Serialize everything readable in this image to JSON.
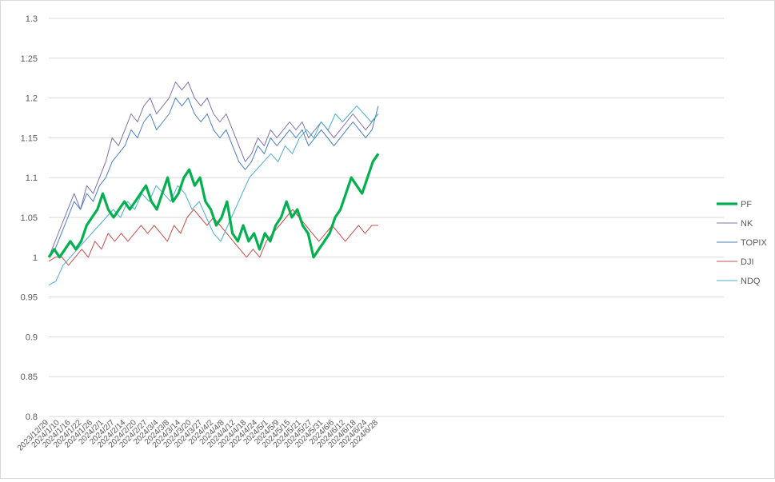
{
  "chart_data": {
    "type": "line",
    "title": "",
    "xlabel": "",
    "ylabel": "",
    "ylim": [
      0.8,
      1.3
    ],
    "yticks": [
      "1.3",
      "1.25",
      "1.2",
      "1.15",
      "1.1",
      "1.05",
      "1",
      "0.95",
      "0.9",
      "0.85",
      "0.8"
    ],
    "grid": true,
    "legend_position": "right",
    "x_tick_labels": [
      "2023/12/29",
      "2024/1/10",
      "2024/1/16",
      "2024/1/22",
      "2024/1/26",
      "2024/2/1",
      "2024/2/7",
      "2024/2/14",
      "2024/2/20",
      "2024/2/27",
      "2024/3/4",
      "2024/3/8",
      "2024/3/14",
      "2024/3/20",
      "2024/3/27",
      "2024/4/2",
      "2024/4/8",
      "2024/4/12",
      "2024/4/18",
      "2024/4/24",
      "2024/5/1",
      "2024/5/9",
      "2024/5/15",
      "2024/5/21",
      "2024/5/27",
      "2024/5/31",
      "2024/6/6",
      "2024/6/12",
      "2024/6/18",
      "2024/6/24",
      "2024/6/28"
    ],
    "series": [
      {
        "name": "PF",
        "color": "#00b050",
        "width": 3.2,
        "values": [
          1.0,
          1.01,
          1.0,
          1.01,
          1.02,
          1.01,
          1.02,
          1.04,
          1.05,
          1.06,
          1.08,
          1.06,
          1.05,
          1.06,
          1.07,
          1.06,
          1.07,
          1.08,
          1.09,
          1.07,
          1.06,
          1.08,
          1.1,
          1.07,
          1.08,
          1.1,
          1.11,
          1.09,
          1.1,
          1.07,
          1.06,
          1.04,
          1.05,
          1.07,
          1.03,
          1.02,
          1.04,
          1.02,
          1.03,
          1.01,
          1.03,
          1.02,
          1.04,
          1.05,
          1.07,
          1.05,
          1.06,
          1.04,
          1.03,
          1.0,
          1.01,
          1.02,
          1.03,
          1.05,
          1.06,
          1.08,
          1.1,
          1.09,
          1.08,
          1.1,
          1.12,
          1.13
        ]
      },
      {
        "name": "NK",
        "color": "#7f6fa8",
        "width": 1,
        "values": [
          1.0,
          1.02,
          1.04,
          1.06,
          1.08,
          1.06,
          1.09,
          1.08,
          1.1,
          1.12,
          1.15,
          1.14,
          1.16,
          1.18,
          1.17,
          1.19,
          1.2,
          1.18,
          1.19,
          1.2,
          1.22,
          1.21,
          1.22,
          1.2,
          1.19,
          1.2,
          1.18,
          1.17,
          1.18,
          1.16,
          1.14,
          1.12,
          1.13,
          1.15,
          1.14,
          1.16,
          1.15,
          1.16,
          1.17,
          1.16,
          1.17,
          1.15,
          1.16,
          1.17,
          1.16,
          1.15,
          1.16,
          1.17,
          1.18,
          1.17,
          1.16,
          1.17,
          1.18
        ]
      },
      {
        "name": "TOPIX",
        "color": "#4a7ebb",
        "width": 1,
        "values": [
          1.0,
          1.01,
          1.03,
          1.05,
          1.07,
          1.06,
          1.08,
          1.07,
          1.09,
          1.1,
          1.12,
          1.13,
          1.14,
          1.16,
          1.15,
          1.17,
          1.18,
          1.16,
          1.17,
          1.18,
          1.2,
          1.19,
          1.2,
          1.18,
          1.17,
          1.18,
          1.16,
          1.15,
          1.16,
          1.14,
          1.12,
          1.11,
          1.12,
          1.14,
          1.13,
          1.15,
          1.14,
          1.15,
          1.16,
          1.15,
          1.16,
          1.14,
          1.15,
          1.16,
          1.15,
          1.14,
          1.15,
          1.16,
          1.17,
          1.16,
          1.15,
          1.16,
          1.19
        ]
      },
      {
        "name": "DJI",
        "color": "#c0504d",
        "width": 1,
        "values": [
          0.995,
          1.0,
          1.0,
          0.99,
          1.0,
          1.01,
          1.0,
          1.02,
          1.01,
          1.03,
          1.02,
          1.03,
          1.02,
          1.03,
          1.04,
          1.03,
          1.04,
          1.03,
          1.02,
          1.04,
          1.03,
          1.05,
          1.06,
          1.05,
          1.04,
          1.05,
          1.04,
          1.03,
          1.02,
          1.01,
          1.0,
          1.01,
          1.0,
          1.02,
          1.03,
          1.04,
          1.05,
          1.06,
          1.05,
          1.04,
          1.03,
          1.02,
          1.03,
          1.04,
          1.03,
          1.02,
          1.03,
          1.04,
          1.03,
          1.04,
          1.04
        ]
      },
      {
        "name": "NDQ",
        "color": "#4bacc6",
        "width": 1,
        "values": [
          0.965,
          0.97,
          0.99,
          1.0,
          1.01,
          1.02,
          1.03,
          1.04,
          1.05,
          1.06,
          1.05,
          1.07,
          1.06,
          1.08,
          1.07,
          1.09,
          1.08,
          1.07,
          1.09,
          1.08,
          1.06,
          1.07,
          1.05,
          1.03,
          1.02,
          1.04,
          1.06,
          1.08,
          1.1,
          1.11,
          1.12,
          1.13,
          1.12,
          1.14,
          1.13,
          1.15,
          1.16,
          1.15,
          1.17,
          1.16,
          1.18,
          1.17,
          1.18,
          1.19,
          1.18,
          1.17,
          1.18
        ]
      }
    ]
  }
}
